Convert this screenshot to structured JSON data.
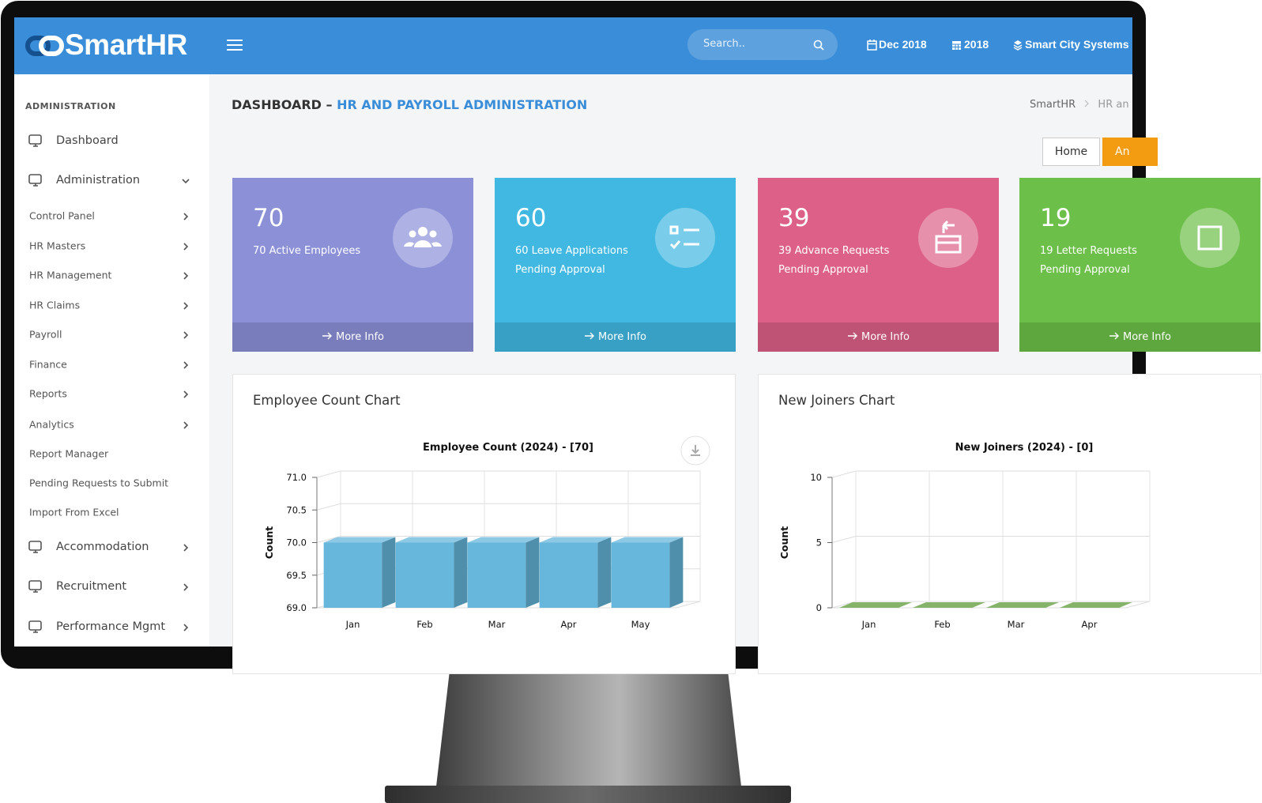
{
  "header": {
    "logo": "SmartHR",
    "search_placeholder": "Search..",
    "month": "Dec 2018",
    "year": "2018",
    "company": "Smart City Systems"
  },
  "sidebar": {
    "section": "ADMINISTRATION",
    "items": [
      {
        "label": "Dashboard",
        "level": 1
      },
      {
        "label": "Administration",
        "level": 1,
        "arrow": "down"
      },
      {
        "label": "Control Panel",
        "level": 2,
        "arrow": "right"
      },
      {
        "label": "HR Masters",
        "level": 2,
        "arrow": "right"
      },
      {
        "label": "HR Management",
        "level": 2,
        "arrow": "right"
      },
      {
        "label": "HR Claims",
        "level": 2,
        "arrow": "right"
      },
      {
        "label": "Payroll",
        "level": 2,
        "arrow": "right"
      },
      {
        "label": "Finance",
        "level": 2,
        "arrow": "right"
      },
      {
        "label": "Reports",
        "level": 2,
        "arrow": "right"
      },
      {
        "label": "Analytics",
        "level": 2,
        "arrow": "right"
      },
      {
        "label": "Report Manager",
        "level": 2
      },
      {
        "label": "Pending Requests to Submit",
        "level": 2
      },
      {
        "label": "Import From Excel",
        "level": 2
      },
      {
        "label": "Accommodation",
        "level": 1,
        "arrow": "right"
      },
      {
        "label": "Recruitment",
        "level": 1,
        "arrow": "right"
      },
      {
        "label": "Performance Mgmt",
        "level": 1,
        "arrow": "right"
      }
    ]
  },
  "page": {
    "title": "DASHBOARD –",
    "subtitle": "HR AND PAYROLL ADMINISTRATION",
    "breadcrumb": [
      "SmartHR",
      "HR an"
    ],
    "buttons": [
      "Home",
      "An"
    ]
  },
  "cards": [
    {
      "count": 70,
      "lines": [
        "70 Active Employees"
      ],
      "link": "More Info",
      "color": "#8b90d7"
    },
    {
      "count": 60,
      "lines": [
        "60 Leave Applications",
        "Pending Approval"
      ],
      "link": "More Info",
      "color": "#40b8e2"
    },
    {
      "count": 39,
      "lines": [
        "39 Advance Requests",
        "Pending Approval"
      ],
      "link": "More Info",
      "color": "#dc6088"
    },
    {
      "count": 19,
      "lines": [
        "19 Letter Requests",
        "Pending Approval"
      ],
      "link": "More Info",
      "color": "#6cbf48"
    }
  ],
  "chart_data": [
    {
      "type": "bar",
      "panel_title": "Employee Count Chart",
      "title": "Employee Count (2024) - [70]",
      "y_label": "Count",
      "categories": [
        "Jan",
        "Feb",
        "Mar",
        "Apr",
        "May"
      ],
      "values": [
        70,
        70,
        70,
        70,
        70
      ],
      "color": "#67b7dc",
      "ylim": [
        69,
        71
      ],
      "yticks": [
        {
          "value": 69,
          "label": "69.0"
        },
        {
          "value": 69.5,
          "label": "69.5"
        },
        {
          "value": 70,
          "label": "70.0"
        },
        {
          "value": 70.5,
          "label": "70.5"
        },
        {
          "value": 71,
          "label": "71.0"
        }
      ],
      "grid": true
    },
    {
      "type": "bar",
      "panel_title": "New Joiners Chart",
      "title": "New Joiners (2024) - [0]",
      "y_label": "Count",
      "categories": [
        "Jan",
        "Feb",
        "Mar",
        "Apr"
      ],
      "values": [
        0,
        0,
        0,
        0
      ],
      "color": "#5e9a38",
      "ylim": [
        0,
        10
      ],
      "yticks": [
        0,
        5,
        10
      ],
      "grid": true
    }
  ]
}
